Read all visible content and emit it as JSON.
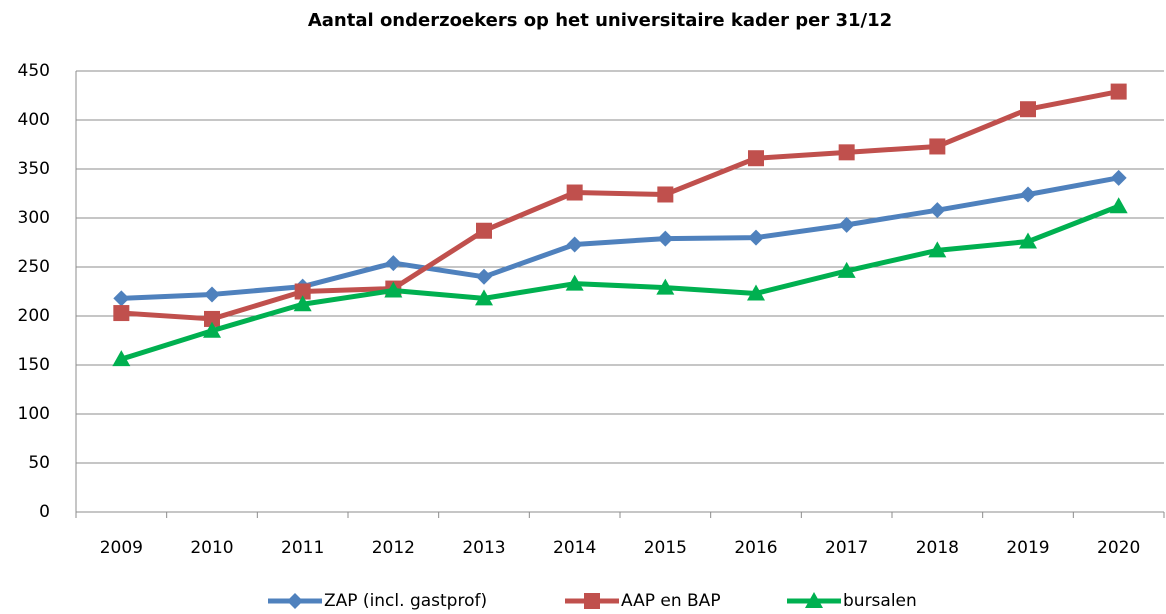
{
  "chart_data": {
    "type": "line",
    "title": "Aantal onderzoekers op het universitaire kader per 31/12",
    "categories": [
      "2009",
      "2010",
      "2011",
      "2012",
      "2013",
      "2014",
      "2015",
      "2016",
      "2017",
      "2018",
      "2019",
      "2020"
    ],
    "series": [
      {
        "name": "ZAP (incl. gastprof)",
        "color": "#4f81bd",
        "marker": "diamond",
        "values": [
          218,
          222,
          230,
          254,
          240,
          273,
          279,
          280,
          293,
          308,
          324,
          341
        ]
      },
      {
        "name": "AAP en BAP",
        "color": "#c0504d",
        "marker": "square",
        "values": [
          203,
          197,
          225,
          228,
          287,
          326,
          324,
          361,
          367,
          373,
          411,
          429
        ]
      },
      {
        "name": "bursalen",
        "color": "#00b050",
        "marker": "triangle",
        "values": [
          156,
          185,
          212,
          226,
          218,
          233,
          229,
          223,
          246,
          267,
          276,
          312
        ]
      }
    ],
    "ylim": [
      0,
      450
    ],
    "yticks": [
      0,
      50,
      100,
      150,
      200,
      250,
      300,
      350,
      400,
      450
    ],
    "grid": true,
    "legend": "bottom"
  }
}
